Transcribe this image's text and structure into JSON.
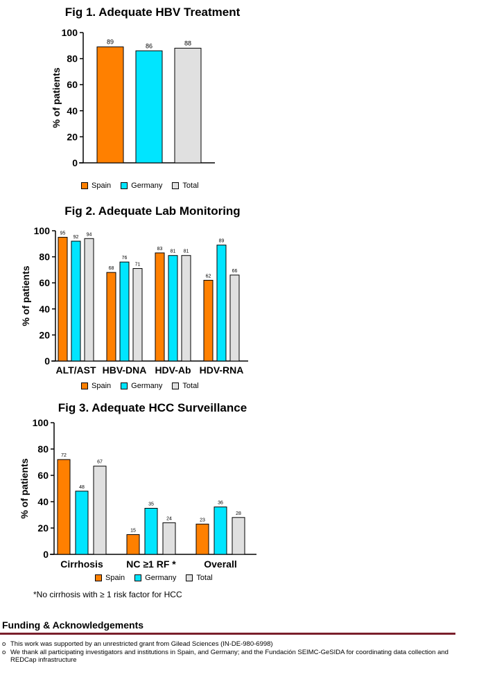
{
  "chart_data": [
    {
      "type": "bar",
      "title": "Fig 1. Adequate HBV Treatment",
      "ylabel": "% of patients",
      "ylim": [
        0,
        100
      ],
      "yticks": [
        "0",
        "20",
        "40",
        "60",
        "80",
        "100"
      ],
      "categories": [
        ""
      ],
      "series": [
        {
          "name": "Spain",
          "values": [
            89
          ],
          "labels": [
            "89"
          ]
        },
        {
          "name": "Germany",
          "values": [
            86
          ],
          "labels": [
            "86"
          ]
        },
        {
          "name": "Total",
          "values": [
            88
          ],
          "labels": [
            "88"
          ]
        }
      ],
      "legend_position": "bottom"
    },
    {
      "type": "bar",
      "title": "Fig 2.  Adequate Lab Monitoring",
      "ylabel": "% of patients",
      "ylim": [
        0,
        100
      ],
      "yticks": [
        "0",
        "20",
        "40",
        "60",
        "80",
        "100"
      ],
      "categories": [
        "ALT/AST",
        "HBV-DNA",
        "HDV-Ab",
        "HDV-RNA"
      ],
      "series": [
        {
          "name": "Spain",
          "values": [
            95,
            68,
            83,
            62
          ],
          "labels": [
            "95",
            "68",
            "83",
            "62"
          ]
        },
        {
          "name": "Germany",
          "values": [
            92,
            76,
            81,
            89
          ],
          "labels": [
            "92",
            "76",
            "81",
            "89"
          ]
        },
        {
          "name": "Total",
          "values": [
            94,
            71,
            81,
            66
          ],
          "labels": [
            "94",
            "71",
            "81",
            "66"
          ]
        }
      ],
      "legend_position": "bottom"
    },
    {
      "type": "bar",
      "title": "Fig 3. Adequate HCC Surveillance",
      "ylabel": "% of patients",
      "ylim": [
        0,
        100
      ],
      "yticks": [
        "0",
        "20",
        "40",
        "60",
        "80",
        "100"
      ],
      "categories": [
        "Cirrhosis",
        "NC ≥1 RF *",
        "Overall"
      ],
      "series": [
        {
          "name": "Spain",
          "values": [
            72,
            15,
            23
          ],
          "labels": [
            "72",
            "15",
            "23"
          ]
        },
        {
          "name": "Germany",
          "values": [
            48,
            35,
            36
          ],
          "labels": [
            "48",
            "35",
            "36"
          ]
        },
        {
          "name": "Total",
          "values": [
            67,
            24,
            28
          ],
          "labels": [
            "67",
            "24",
            "28"
          ]
        }
      ],
      "legend_position": "bottom"
    }
  ],
  "colors": {
    "Spain": "#ff8000",
    "Germany": "#00e5ff",
    "Total": "#e0e0e0",
    "rule": "#7a1f2b"
  },
  "footnote": "*No cirrhosis with ≥ 1 risk factor for HCC",
  "funding": {
    "title": "Funding & Acknowledgements",
    "bullet": "o",
    "items": [
      "This work was supported by an unrestricted grant from Gilead Sciences (IN-DE-980-6998)",
      "We thank all participating investigators and institutions in Spain, and Germany; and the Fundación SEIMC-GeSIDA for coordinating data collection and REDCap infrastructure"
    ]
  }
}
